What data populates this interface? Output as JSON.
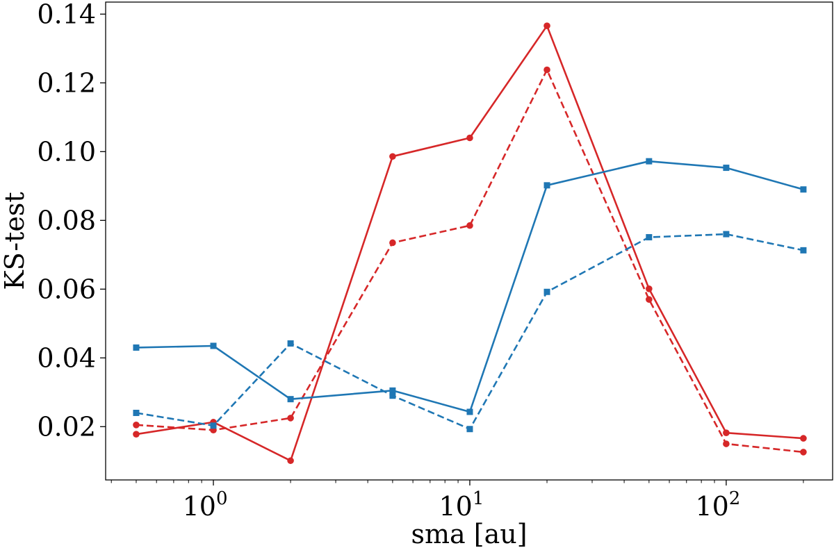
{
  "chart_data": {
    "type": "line",
    "title": "",
    "xlabel": "sma [au]",
    "ylabel": "KS-test",
    "xscale": "log",
    "xlim": [
      0.38,
      260
    ],
    "ylim": [
      0.0045,
      0.1435
    ],
    "x": [
      0.5,
      1,
      2,
      5,
      10,
      20,
      50,
      100,
      200
    ],
    "xticks": [
      {
        "value": 1,
        "base": "10",
        "exp": "0"
      },
      {
        "value": 10,
        "base": "10",
        "exp": "1"
      },
      {
        "value": 100,
        "base": "10",
        "exp": "2"
      }
    ],
    "yticks": [
      {
        "value": 0.02,
        "label": "0.02"
      },
      {
        "value": 0.04,
        "label": "0.04"
      },
      {
        "value": 0.06,
        "label": "0.06"
      },
      {
        "value": 0.08,
        "label": "0.08"
      },
      {
        "value": 0.1,
        "label": "0.10"
      },
      {
        "value": 0.12,
        "label": "0.12"
      },
      {
        "value": 0.14,
        "label": "0.14"
      }
    ],
    "grid": false,
    "legend": null,
    "series": [
      {
        "name": "red-solid",
        "color": "#d62728",
        "dash": "solid",
        "marker": "circle",
        "values": [
          0.0178,
          0.0213,
          0.0101,
          0.0986,
          0.104,
          0.1366,
          0.0601,
          0.0182,
          0.0166
        ]
      },
      {
        "name": "red-dashed",
        "color": "#d62728",
        "dash": "dashed",
        "marker": "circle",
        "values": [
          0.0205,
          0.019,
          0.0225,
          0.0735,
          0.0785,
          0.1238,
          0.057,
          0.015,
          0.0126
        ]
      },
      {
        "name": "blue-solid",
        "color": "#1f77b4",
        "dash": "solid",
        "marker": "square",
        "values": [
          0.043,
          0.0435,
          0.028,
          0.0305,
          0.0243,
          0.0902,
          0.0972,
          0.0953,
          0.089
        ]
      },
      {
        "name": "blue-dashed",
        "color": "#1f77b4",
        "dash": "dashed",
        "marker": "square",
        "values": [
          0.024,
          0.0203,
          0.0442,
          0.029,
          0.0193,
          0.0592,
          0.0751,
          0.076,
          0.0713
        ]
      }
    ]
  }
}
